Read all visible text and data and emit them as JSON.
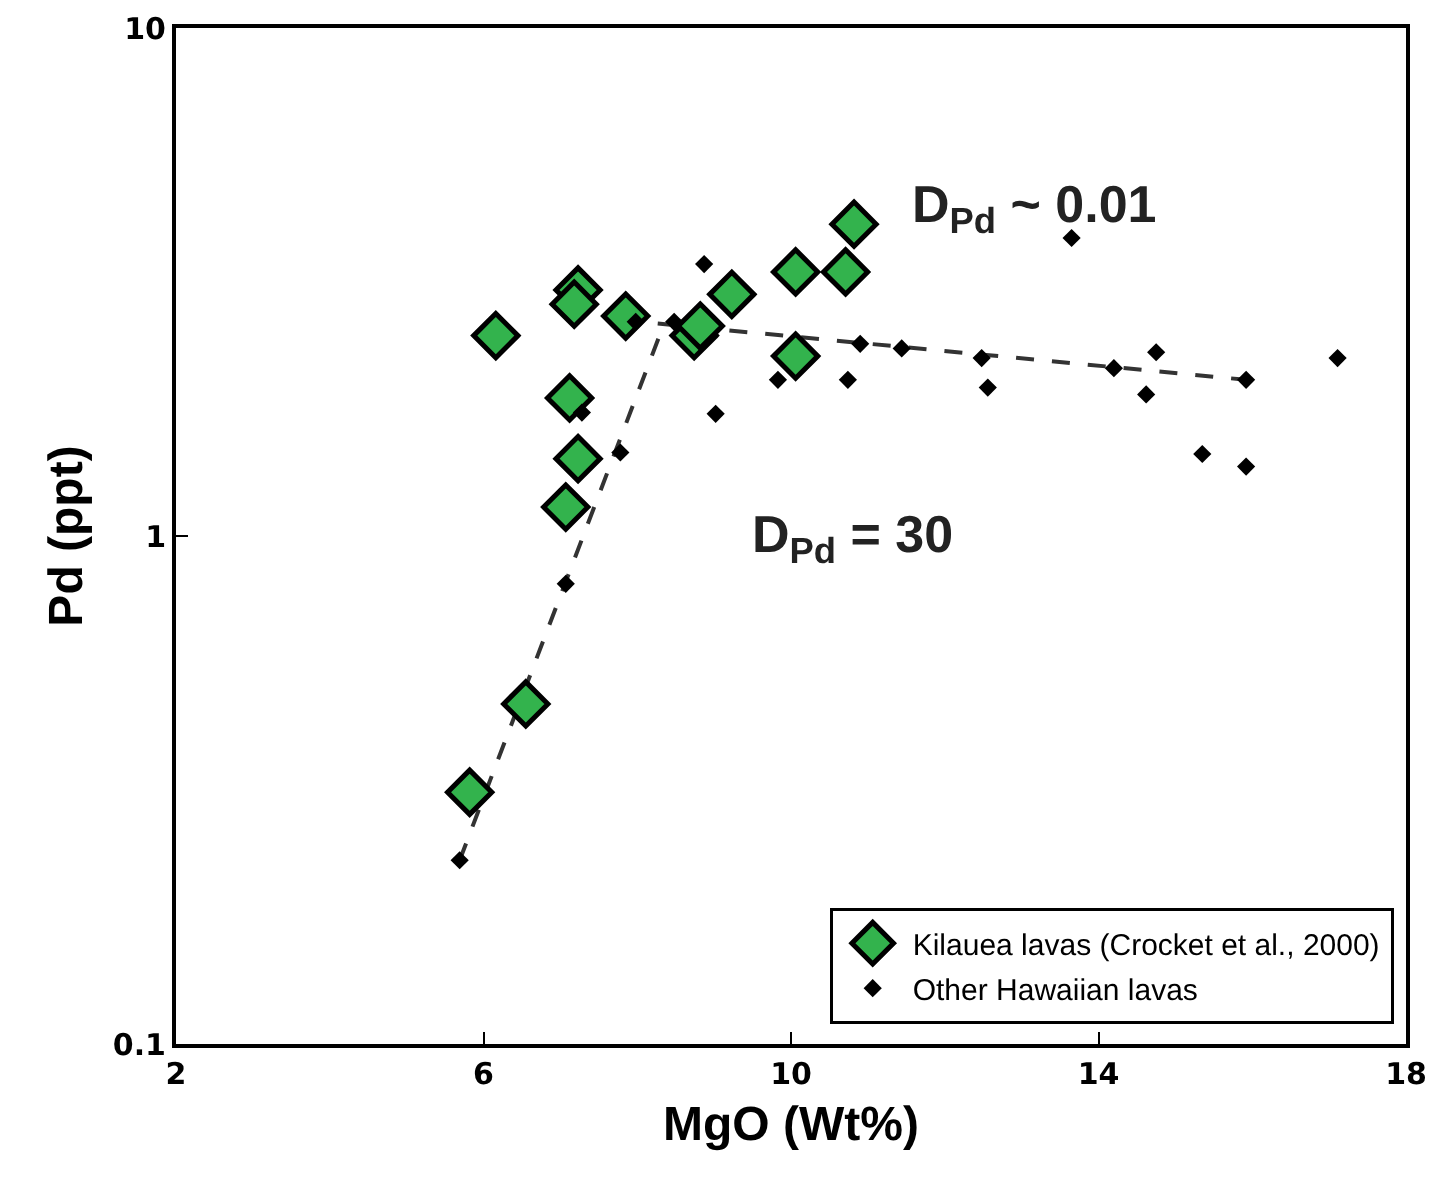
{
  "chart_data": {
    "type": "scatter",
    "xlabel": "MgO (Wt%)",
    "ylabel": "Pd (ppt)",
    "log": "y",
    "xlim": [
      2,
      18
    ],
    "xticks": [
      2,
      6,
      10,
      14,
      18
    ],
    "ylim": [
      0.1,
      10
    ],
    "yticks": [
      0.1,
      1,
      10
    ],
    "grid": false,
    "legend": "bottom right",
    "marker": "diamond",
    "annotations": [
      "D$_{Pd}$ ~ 0.01",
      "D$_{Pd}$ = 30"
    ],
    "series": [
      {
        "name": "Kilauea lavas (Crocket et al., 2000)",
        "color": "#33b34d",
        "x": [
          5.82,
          6.55,
          6.16,
          7.23,
          7.18,
          7.85,
          7.12,
          7.23,
          7.07,
          8.74,
          8.82,
          9.23,
          10.06,
          10.06,
          10.71,
          10.82
        ],
        "values": [
          0.313,
          0.467,
          2.48,
          3.05,
          2.86,
          2.71,
          1.87,
          1.42,
          1.14,
          2.48,
          2.59,
          2.99,
          3.31,
          2.26,
          3.31,
          4.11
        ]
      },
      {
        "name": "Other Hawaiian lavas",
        "color": "#000000",
        "x": [
          5.69,
          7.07,
          7.78,
          7.28,
          7.98,
          8.48,
          8.87,
          9.02,
          9.83,
          10.74,
          10.9,
          11.44,
          12.48,
          12.56,
          13.65,
          14.2,
          14.62,
          14.75,
          15.35,
          15.92,
          15.92,
          17.11
        ],
        "values": [
          0.23,
          0.805,
          1.46,
          1.75,
          2.64,
          2.64,
          3.43,
          1.74,
          2.03,
          2.03,
          2.39,
          2.34,
          2.24,
          1.96,
          3.86,
          2.14,
          1.9,
          2.3,
          1.45,
          1.37,
          2.03,
          2.24
        ]
      },
      {
        "type": "line",
        "line_style": "dashed",
        "marker": "none",
        "color": "#333333",
        "x": [
          5.69,
          8.35
        ],
        "values": [
          0.23,
          2.62
        ]
      },
      {
        "type": "line",
        "line_style": "dashed",
        "marker": "none",
        "color": "#333333",
        "x": [
          7.8,
          15.92
        ],
        "values": [
          2.66,
          2.03
        ]
      }
    ]
  }
}
